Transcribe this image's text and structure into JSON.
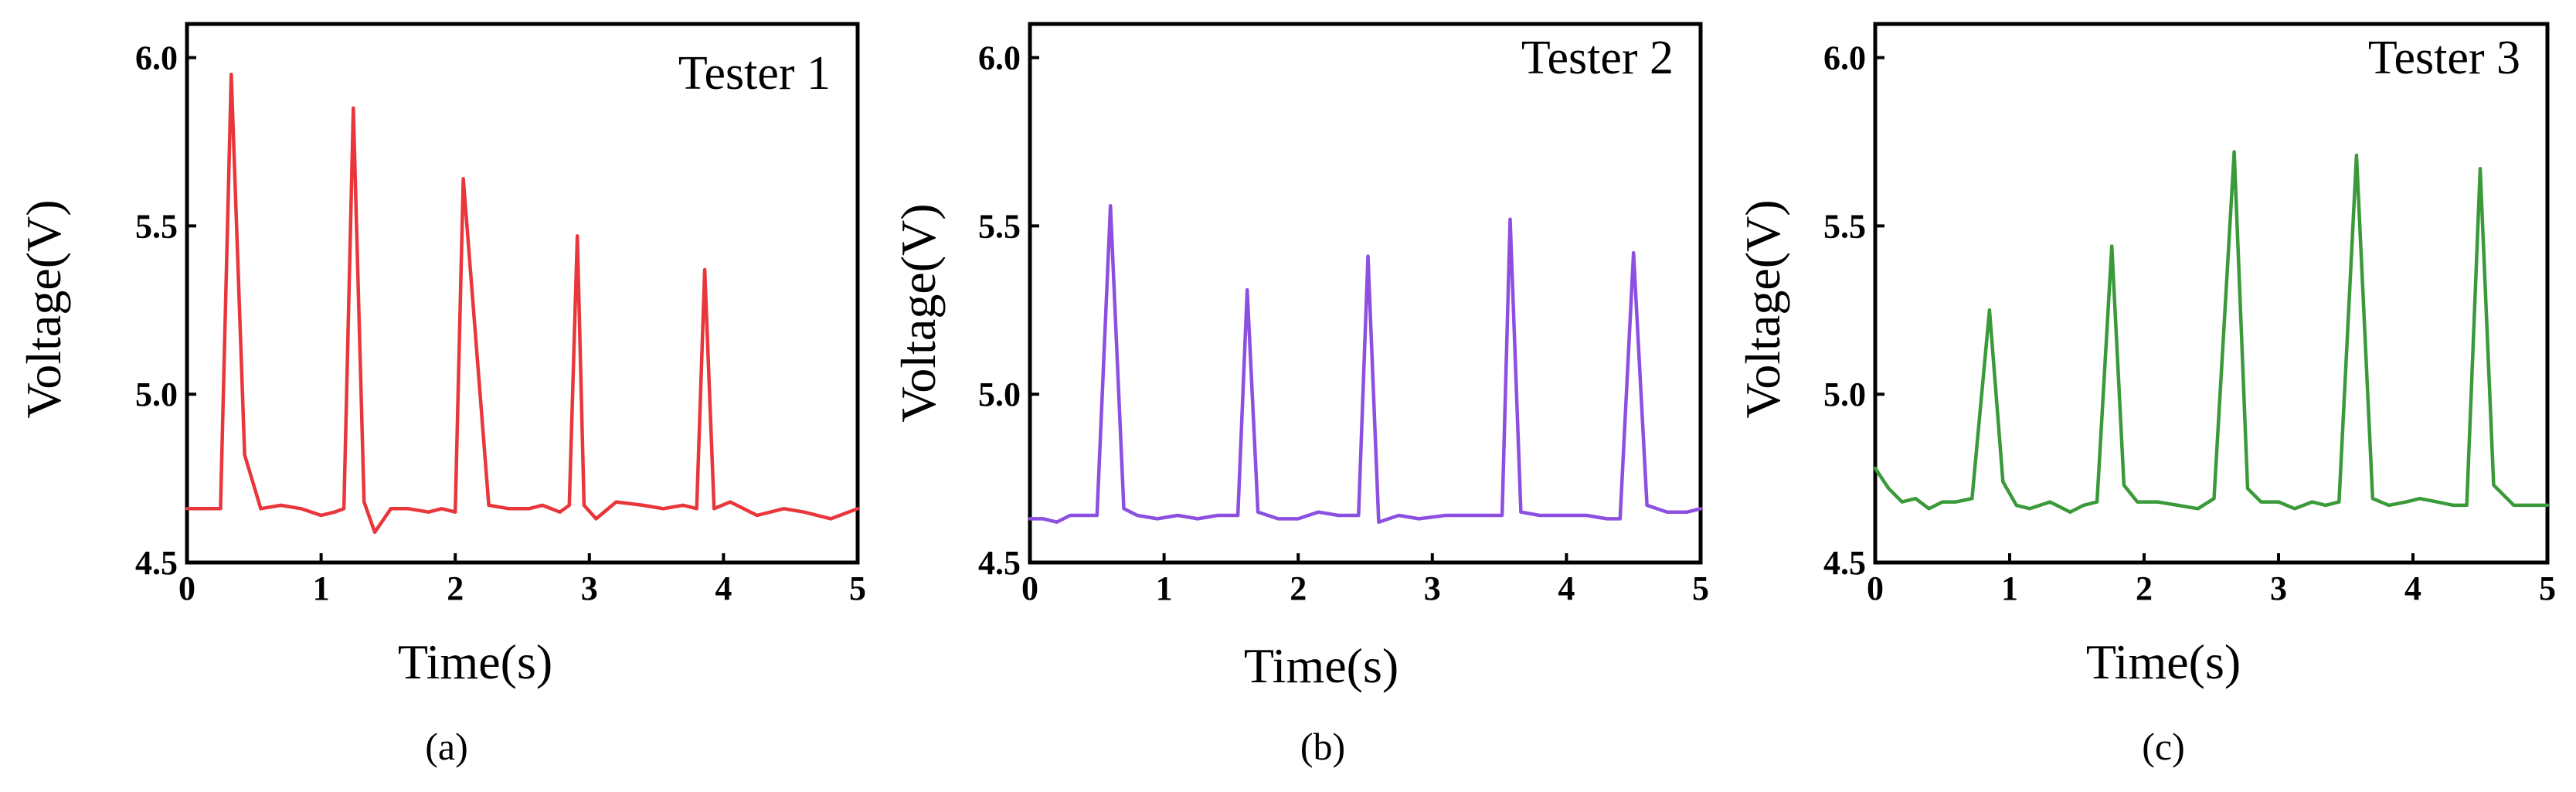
{
  "chart_data": [
    {
      "type": "line",
      "panel": "(a)",
      "title": "Tester 1",
      "xlabel": "Time(s)",
      "ylabel": "Voltage(V)",
      "xlim": [
        0,
        5
      ],
      "ylim": [
        4.5,
        6.1
      ],
      "xticks": [
        "0",
        "1",
        "2",
        "3",
        "4",
        "5"
      ],
      "yticks": [
        "4.5",
        "5.0",
        "5.5",
        "6.0"
      ],
      "grid": false,
      "color": "#e8363b",
      "series": [
        {
          "x": [
            0,
            0.15,
            0.25,
            0.33,
            0.43,
            0.55,
            0.7,
            0.85,
            1.0,
            1.1,
            1.17,
            1.24,
            1.32,
            1.4,
            1.52,
            1.65,
            1.8,
            1.9,
            2.0,
            2.06,
            2.25,
            2.4,
            2.55,
            2.65,
            2.78,
            2.85,
            2.91,
            2.96,
            3.05,
            3.2,
            3.4,
            3.55,
            3.7,
            3.8,
            3.86,
            3.93,
            4.05,
            4.25,
            4.45,
            4.6,
            4.8,
            5.0
          ],
          "values": [
            4.66,
            4.66,
            4.66,
            5.95,
            4.82,
            4.66,
            4.67,
            4.66,
            4.64,
            4.65,
            4.66,
            5.85,
            4.68,
            4.59,
            4.66,
            4.66,
            4.65,
            4.66,
            4.65,
            5.64,
            4.67,
            4.66,
            4.66,
            4.67,
            4.65,
            4.67,
            5.47,
            4.67,
            4.63,
            4.68,
            4.67,
            4.66,
            4.67,
            4.66,
            5.37,
            4.66,
            4.68,
            4.64,
            4.66,
            4.65,
            4.63,
            4.66
          ]
        }
      ],
      "panel_label": "(a)"
    },
    {
      "type": "line",
      "panel": "(b)",
      "title": "Tester 2",
      "xlabel": "Time(s)",
      "ylabel": "Voltage(V)",
      "xlim": [
        0,
        5
      ],
      "ylim": [
        4.5,
        6.1
      ],
      "xticks": [
        "0",
        "1",
        "2",
        "3",
        "4",
        "5"
      ],
      "yticks": [
        "4.5",
        "5.0",
        "5.5",
        "6.0"
      ],
      "grid": false,
      "color": "#8c4fe0",
      "series": [
        {
          "x": [
            0,
            0.1,
            0.2,
            0.3,
            0.38,
            0.45,
            0.5,
            0.6,
            0.7,
            0.8,
            0.95,
            1.1,
            1.25,
            1.4,
            1.55,
            1.62,
            1.7,
            1.85,
            2.0,
            2.15,
            2.3,
            2.45,
            2.52,
            2.6,
            2.75,
            2.9,
            3.1,
            3.3,
            3.45,
            3.52,
            3.58,
            3.66,
            3.8,
            3.95,
            4.15,
            4.3,
            4.4,
            4.5,
            4.6,
            4.75,
            4.9,
            5.0
          ],
          "values": [
            4.63,
            4.63,
            4.62,
            4.64,
            4.64,
            4.64,
            4.64,
            5.56,
            4.66,
            4.64,
            4.63,
            4.64,
            4.63,
            4.64,
            4.64,
            5.31,
            4.65,
            4.63,
            4.63,
            4.65,
            4.64,
            4.64,
            5.41,
            4.62,
            4.64,
            4.63,
            4.64,
            4.64,
            4.64,
            4.64,
            5.52,
            4.65,
            4.64,
            4.64,
            4.64,
            4.63,
            4.63,
            5.42,
            4.67,
            4.65,
            4.65,
            4.66
          ]
        }
      ],
      "panel_label": "(b)"
    },
    {
      "type": "line",
      "panel": "(c)",
      "title": "Tester 3",
      "xlabel": "Time(s)",
      "ylabel": "Voltage(V)",
      "xlim": [
        0,
        5
      ],
      "ylim": [
        4.5,
        6.1
      ],
      "xticks": [
        "0",
        "1",
        "2",
        "3",
        "4",
        "5"
      ],
      "yticks": [
        "4.5",
        "5.0",
        "5.5",
        "6.0"
      ],
      "grid": false,
      "color": "#3a9a3a",
      "series": [
        {
          "x": [
            0,
            0.1,
            0.2,
            0.3,
            0.4,
            0.5,
            0.6,
            0.72,
            0.85,
            0.95,
            1.05,
            1.15,
            1.3,
            1.45,
            1.55,
            1.65,
            1.76,
            1.85,
            1.95,
            2.1,
            2.25,
            2.4,
            2.52,
            2.67,
            2.77,
            2.87,
            3.0,
            3.12,
            3.25,
            3.35,
            3.45,
            3.58,
            3.7,
            3.82,
            3.95,
            4.05,
            4.18,
            4.3,
            4.4,
            4.5,
            4.6,
            4.75,
            4.9,
            5.0
          ],
          "values": [
            4.78,
            4.72,
            4.68,
            4.69,
            4.66,
            4.68,
            4.68,
            4.69,
            5.25,
            4.74,
            4.67,
            4.66,
            4.68,
            4.65,
            4.67,
            4.68,
            5.44,
            4.73,
            4.68,
            4.68,
            4.67,
            4.66,
            4.69,
            5.72,
            4.72,
            4.68,
            4.68,
            4.66,
            4.68,
            4.67,
            4.68,
            5.71,
            4.69,
            4.67,
            4.68,
            4.69,
            4.68,
            4.67,
            4.67,
            5.67,
            4.73,
            4.67,
            4.67,
            4.67
          ]
        }
      ],
      "panel_label": "(c)"
    }
  ]
}
